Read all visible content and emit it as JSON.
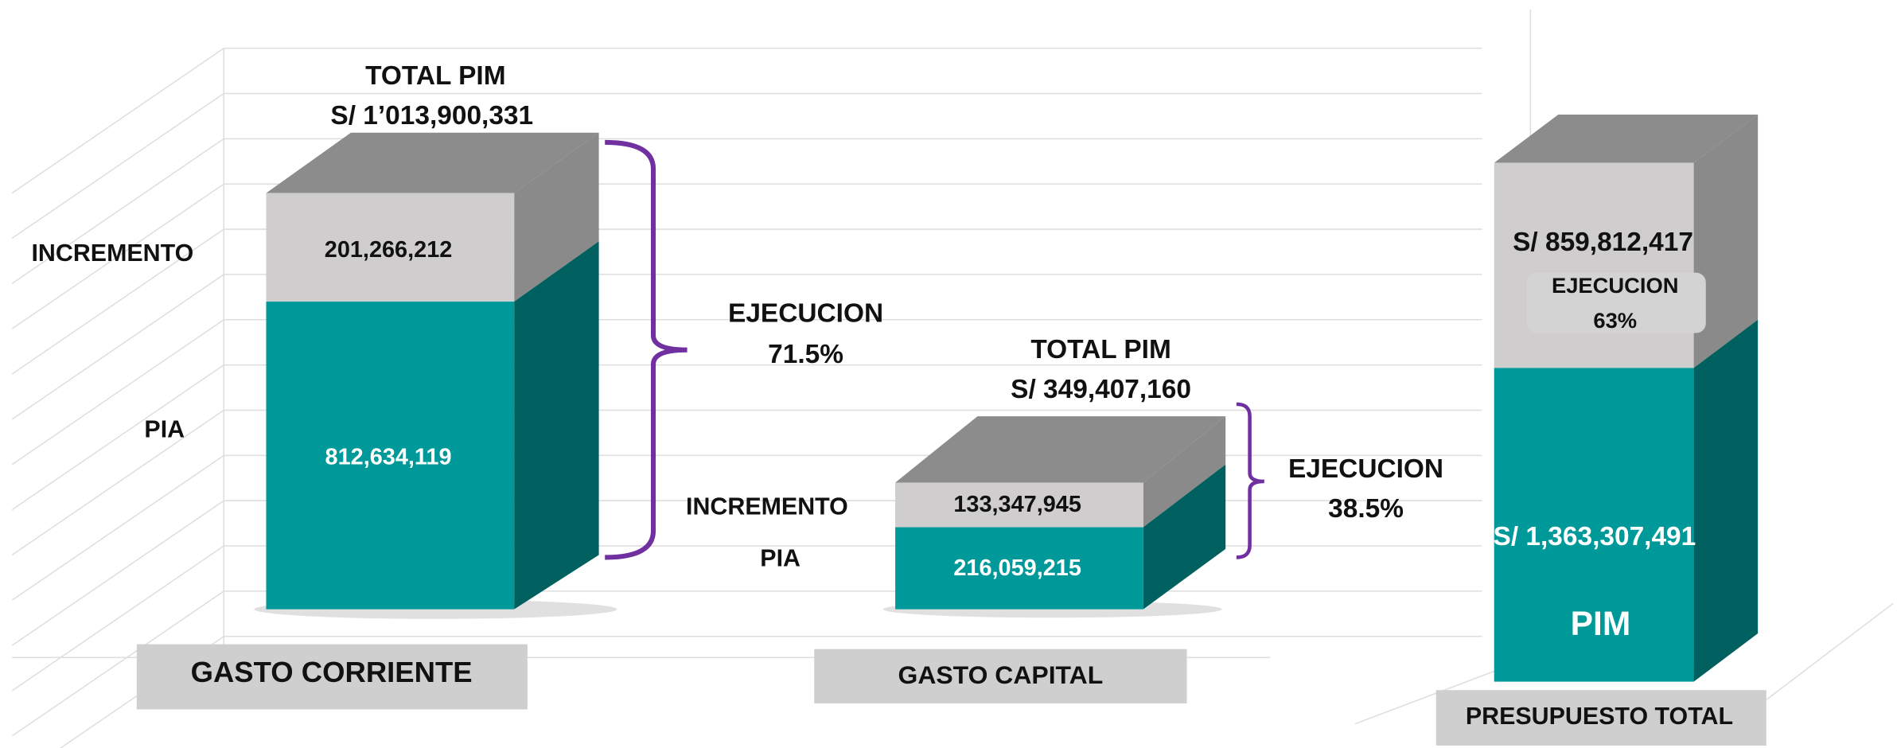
{
  "groups": [
    {
      "label": "GASTO CORRIENTE",
      "total_label": "TOTAL PIM",
      "total": "S/ 1’013,900,331",
      "segments": [
        {
          "name": "INCREMENTO",
          "value": "201,266,212"
        },
        {
          "name": "PIA",
          "value": "812,634,119"
        }
      ],
      "execution_label": "EJECUCION",
      "execution": "71.5%"
    },
    {
      "label": "GASTO CAPITAL",
      "total_label": "TOTAL PIM",
      "total": "S/ 349,407,160",
      "segments": [
        {
          "name": "INCREMENTO",
          "value": "133,347,945"
        },
        {
          "name": "PIA",
          "value": "216,059,215"
        }
      ],
      "execution_label": "EJECUCION",
      "execution": "38.5%"
    }
  ],
  "total": {
    "label": "PRESUPUESTO TOTAL",
    "execution_amount": "S/ 859,812,417",
    "execution_label": "EJECUCION",
    "execution": "63%",
    "pim_amount": "S/ 1,363,307,491",
    "pim_label": "PIM"
  }
}
